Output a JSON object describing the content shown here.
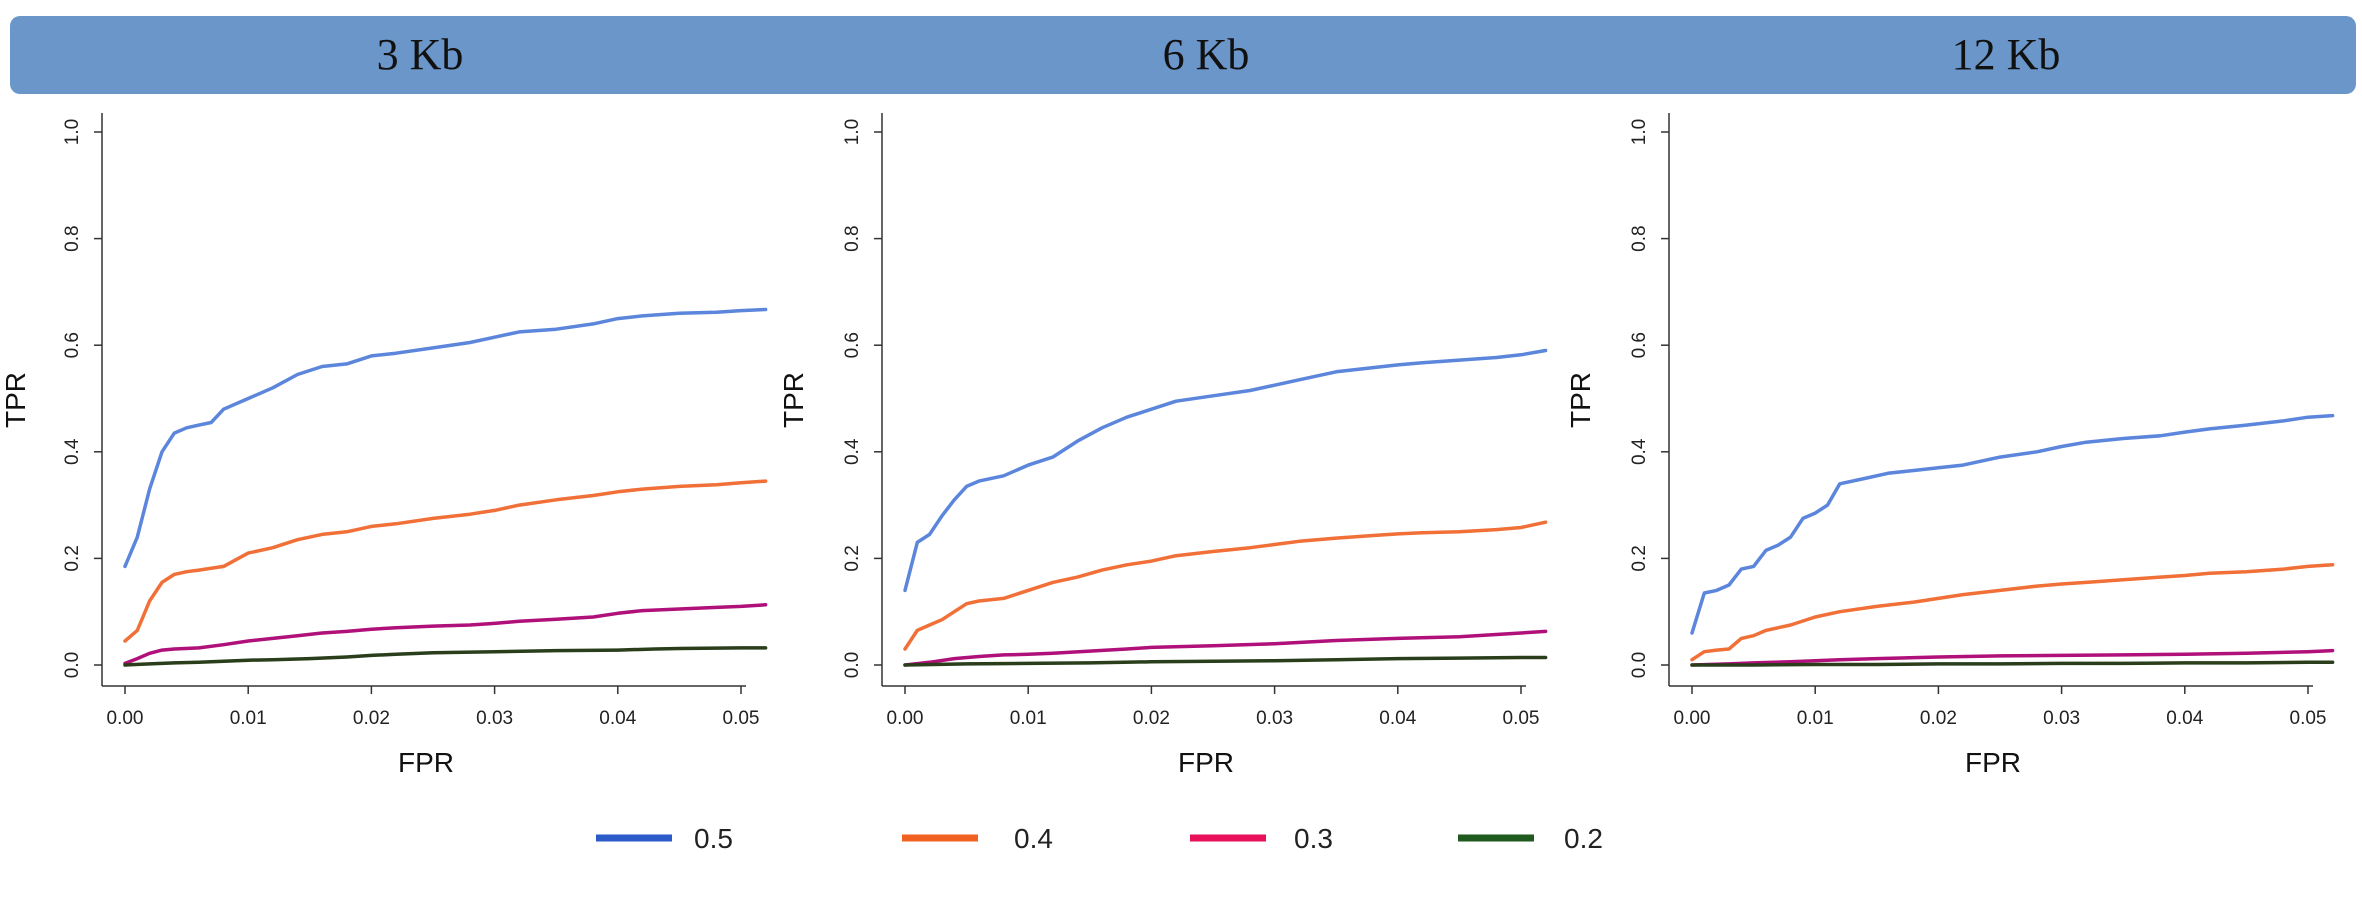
{
  "chart_data": [
    {
      "type": "line",
      "title": "3 Kb",
      "xlabel": "FPR",
      "ylabel": "TPR",
      "xlim": [
        0,
        0.052
      ],
      "ylim": [
        0,
        1.0
      ],
      "x_ticks": [
        "0.00",
        "0.01",
        "0.02",
        "0.03",
        "0.04",
        "0.05"
      ],
      "y_ticks": [
        "0.0",
        "0.2",
        "0.4",
        "0.6",
        "0.8",
        "1.0"
      ],
      "series": [
        {
          "name": "0.5",
          "x": [
            0,
            0.001,
            0.002,
            0.003,
            0.004,
            0.005,
            0.006,
            0.007,
            0.008,
            0.01,
            0.012,
            0.014,
            0.016,
            0.018,
            0.02,
            0.022,
            0.025,
            0.028,
            0.03,
            0.032,
            0.035,
            0.038,
            0.04,
            0.042,
            0.045,
            0.048,
            0.05,
            0.052
          ],
          "y": [
            0.185,
            0.24,
            0.33,
            0.4,
            0.435,
            0.445,
            0.45,
            0.455,
            0.48,
            0.5,
            0.52,
            0.545,
            0.56,
            0.565,
            0.58,
            0.585,
            0.595,
            0.605,
            0.615,
            0.625,
            0.63,
            0.64,
            0.65,
            0.655,
            0.66,
            0.662,
            0.665,
            0.667
          ]
        },
        {
          "name": "0.4",
          "x": [
            0,
            0.001,
            0.002,
            0.003,
            0.004,
            0.005,
            0.006,
            0.008,
            0.01,
            0.012,
            0.014,
            0.016,
            0.018,
            0.02,
            0.022,
            0.025,
            0.028,
            0.03,
            0.032,
            0.035,
            0.038,
            0.04,
            0.042,
            0.045,
            0.048,
            0.05,
            0.052
          ],
          "y": [
            0.045,
            0.065,
            0.12,
            0.155,
            0.17,
            0.175,
            0.178,
            0.185,
            0.21,
            0.22,
            0.235,
            0.245,
            0.25,
            0.26,
            0.265,
            0.275,
            0.283,
            0.29,
            0.3,
            0.31,
            0.318,
            0.325,
            0.33,
            0.335,
            0.338,
            0.342,
            0.345
          ]
        },
        {
          "name": "0.3",
          "x": [
            0,
            0.001,
            0.002,
            0.003,
            0.004,
            0.006,
            0.008,
            0.01,
            0.012,
            0.014,
            0.016,
            0.018,
            0.02,
            0.022,
            0.025,
            0.028,
            0.03,
            0.032,
            0.035,
            0.038,
            0.04,
            0.042,
            0.045,
            0.048,
            0.05,
            0.052
          ],
          "y": [
            0.003,
            0.012,
            0.022,
            0.028,
            0.03,
            0.032,
            0.038,
            0.045,
            0.05,
            0.055,
            0.06,
            0.063,
            0.067,
            0.07,
            0.073,
            0.075,
            0.078,
            0.082,
            0.086,
            0.09,
            0.097,
            0.102,
            0.105,
            0.108,
            0.11,
            0.113
          ]
        },
        {
          "name": "0.2",
          "x": [
            0,
            0.002,
            0.004,
            0.006,
            0.008,
            0.01,
            0.012,
            0.015,
            0.018,
            0.02,
            0.022,
            0.025,
            0.03,
            0.035,
            0.04,
            0.043,
            0.045,
            0.05,
            0.052
          ],
          "y": [
            0,
            0.002,
            0.004,
            0.005,
            0.007,
            0.009,
            0.01,
            0.012,
            0.015,
            0.018,
            0.02,
            0.023,
            0.025,
            0.027,
            0.028,
            0.03,
            0.031,
            0.032,
            0.032
          ]
        }
      ]
    },
    {
      "type": "line",
      "title": "6 Kb",
      "xlabel": "FPR",
      "ylabel": "TPR",
      "xlim": [
        0,
        0.052
      ],
      "ylim": [
        0,
        1.0
      ],
      "x_ticks": [
        "0.00",
        "0.01",
        "0.02",
        "0.03",
        "0.04",
        "0.05"
      ],
      "y_ticks": [
        "0.0",
        "0.2",
        "0.4",
        "0.6",
        "0.8",
        "1.0"
      ],
      "series": [
        {
          "name": "0.5",
          "x": [
            0,
            0.001,
            0.002,
            0.003,
            0.004,
            0.005,
            0.006,
            0.008,
            0.01,
            0.012,
            0.014,
            0.016,
            0.018,
            0.02,
            0.022,
            0.025,
            0.028,
            0.03,
            0.032,
            0.035,
            0.038,
            0.04,
            0.042,
            0.045,
            0.048,
            0.05,
            0.052
          ],
          "y": [
            0.14,
            0.23,
            0.245,
            0.28,
            0.31,
            0.335,
            0.345,
            0.355,
            0.375,
            0.39,
            0.42,
            0.445,
            0.465,
            0.48,
            0.495,
            0.505,
            0.515,
            0.525,
            0.535,
            0.55,
            0.558,
            0.563,
            0.567,
            0.572,
            0.577,
            0.582,
            0.59
          ]
        },
        {
          "name": "0.4",
          "x": [
            0,
            0.001,
            0.002,
            0.003,
            0.004,
            0.005,
            0.006,
            0.008,
            0.01,
            0.012,
            0.014,
            0.016,
            0.018,
            0.02,
            0.022,
            0.025,
            0.028,
            0.03,
            0.032,
            0.035,
            0.038,
            0.04,
            0.042,
            0.045,
            0.048,
            0.05,
            0.052
          ],
          "y": [
            0.03,
            0.065,
            0.075,
            0.085,
            0.1,
            0.115,
            0.12,
            0.125,
            0.14,
            0.155,
            0.165,
            0.178,
            0.188,
            0.195,
            0.205,
            0.213,
            0.22,
            0.226,
            0.232,
            0.238,
            0.243,
            0.246,
            0.248,
            0.25,
            0.254,
            0.258,
            0.268
          ]
        },
        {
          "name": "0.3",
          "x": [
            0,
            0.002,
            0.004,
            0.006,
            0.008,
            0.01,
            0.012,
            0.015,
            0.018,
            0.02,
            0.025,
            0.03,
            0.035,
            0.04,
            0.045,
            0.05,
            0.052
          ],
          "y": [
            0,
            0.005,
            0.012,
            0.016,
            0.019,
            0.02,
            0.022,
            0.026,
            0.03,
            0.033,
            0.036,
            0.04,
            0.046,
            0.05,
            0.053,
            0.06,
            0.063
          ]
        },
        {
          "name": "0.2",
          "x": [
            0,
            0.005,
            0.01,
            0.015,
            0.02,
            0.025,
            0.03,
            0.035,
            0.04,
            0.045,
            0.05,
            0.052
          ],
          "y": [
            0,
            0.002,
            0.003,
            0.004,
            0.006,
            0.007,
            0.008,
            0.01,
            0.012,
            0.013,
            0.014,
            0.014
          ]
        }
      ]
    },
    {
      "type": "line",
      "title": "12 Kb",
      "xlabel": "FPR",
      "ylabel": "TPR",
      "xlim": [
        0,
        0.052
      ],
      "ylim": [
        0,
        1.0
      ],
      "x_ticks": [
        "0.00",
        "0.01",
        "0.02",
        "0.03",
        "0.04",
        "0.05"
      ],
      "y_ticks": [
        "0.0",
        "0.2",
        "0.4",
        "0.6",
        "0.8",
        "1.0"
      ],
      "series": [
        {
          "name": "0.5",
          "x": [
            0,
            0.001,
            0.002,
            0.003,
            0.004,
            0.005,
            0.006,
            0.007,
            0.008,
            0.009,
            0.01,
            0.011,
            0.012,
            0.014,
            0.016,
            0.018,
            0.02,
            0.022,
            0.025,
            0.028,
            0.03,
            0.032,
            0.035,
            0.038,
            0.04,
            0.042,
            0.045,
            0.048,
            0.05,
            0.052
          ],
          "y": [
            0.06,
            0.135,
            0.14,
            0.15,
            0.18,
            0.185,
            0.215,
            0.225,
            0.24,
            0.275,
            0.285,
            0.3,
            0.34,
            0.35,
            0.36,
            0.365,
            0.37,
            0.375,
            0.39,
            0.4,
            0.41,
            0.418,
            0.425,
            0.43,
            0.437,
            0.443,
            0.45,
            0.458,
            0.465,
            0.468
          ]
        },
        {
          "name": "0.4",
          "x": [
            0,
            0.001,
            0.002,
            0.003,
            0.004,
            0.005,
            0.006,
            0.008,
            0.01,
            0.012,
            0.015,
            0.018,
            0.02,
            0.022,
            0.025,
            0.028,
            0.03,
            0.032,
            0.035,
            0.038,
            0.04,
            0.042,
            0.045,
            0.048,
            0.05,
            0.052
          ],
          "y": [
            0.01,
            0.025,
            0.028,
            0.03,
            0.05,
            0.055,
            0.065,
            0.075,
            0.09,
            0.1,
            0.11,
            0.118,
            0.125,
            0.132,
            0.14,
            0.148,
            0.152,
            0.155,
            0.16,
            0.165,
            0.168,
            0.172,
            0.175,
            0.18,
            0.185,
            0.188
          ]
        },
        {
          "name": "0.3",
          "x": [
            0,
            0.003,
            0.005,
            0.008,
            0.01,
            0.012,
            0.015,
            0.02,
            0.025,
            0.03,
            0.035,
            0.04,
            0.045,
            0.05,
            0.052
          ],
          "y": [
            0,
            0.002,
            0.004,
            0.006,
            0.008,
            0.01,
            0.012,
            0.015,
            0.017,
            0.018,
            0.019,
            0.02,
            0.022,
            0.025,
            0.027
          ]
        },
        {
          "name": "0.2",
          "x": [
            0,
            0.005,
            0.01,
            0.015,
            0.02,
            0.025,
            0.03,
            0.035,
            0.04,
            0.045,
            0.05,
            0.052
          ],
          "y": [
            0,
            0,
            0.001,
            0.001,
            0.002,
            0.002,
            0.003,
            0.003,
            0.004,
            0.004,
            0.005,
            0.005
          ]
        }
      ]
    }
  ],
  "legend": [
    {
      "label": "0.5",
      "color": "#2a5bc8"
    },
    {
      "label": "0.4",
      "color": "#f06020"
    },
    {
      "label": "0.3",
      "color": "#e8105a"
    },
    {
      "label": "0.2",
      "color": "#1e5a1e"
    }
  ],
  "series_colors": {
    "0.5": "#5b86dc",
    "0.4": "#f07038",
    "0.3": "#b0107a",
    "0.2": "#2a3e1c"
  },
  "header_color": "#6b96c9"
}
